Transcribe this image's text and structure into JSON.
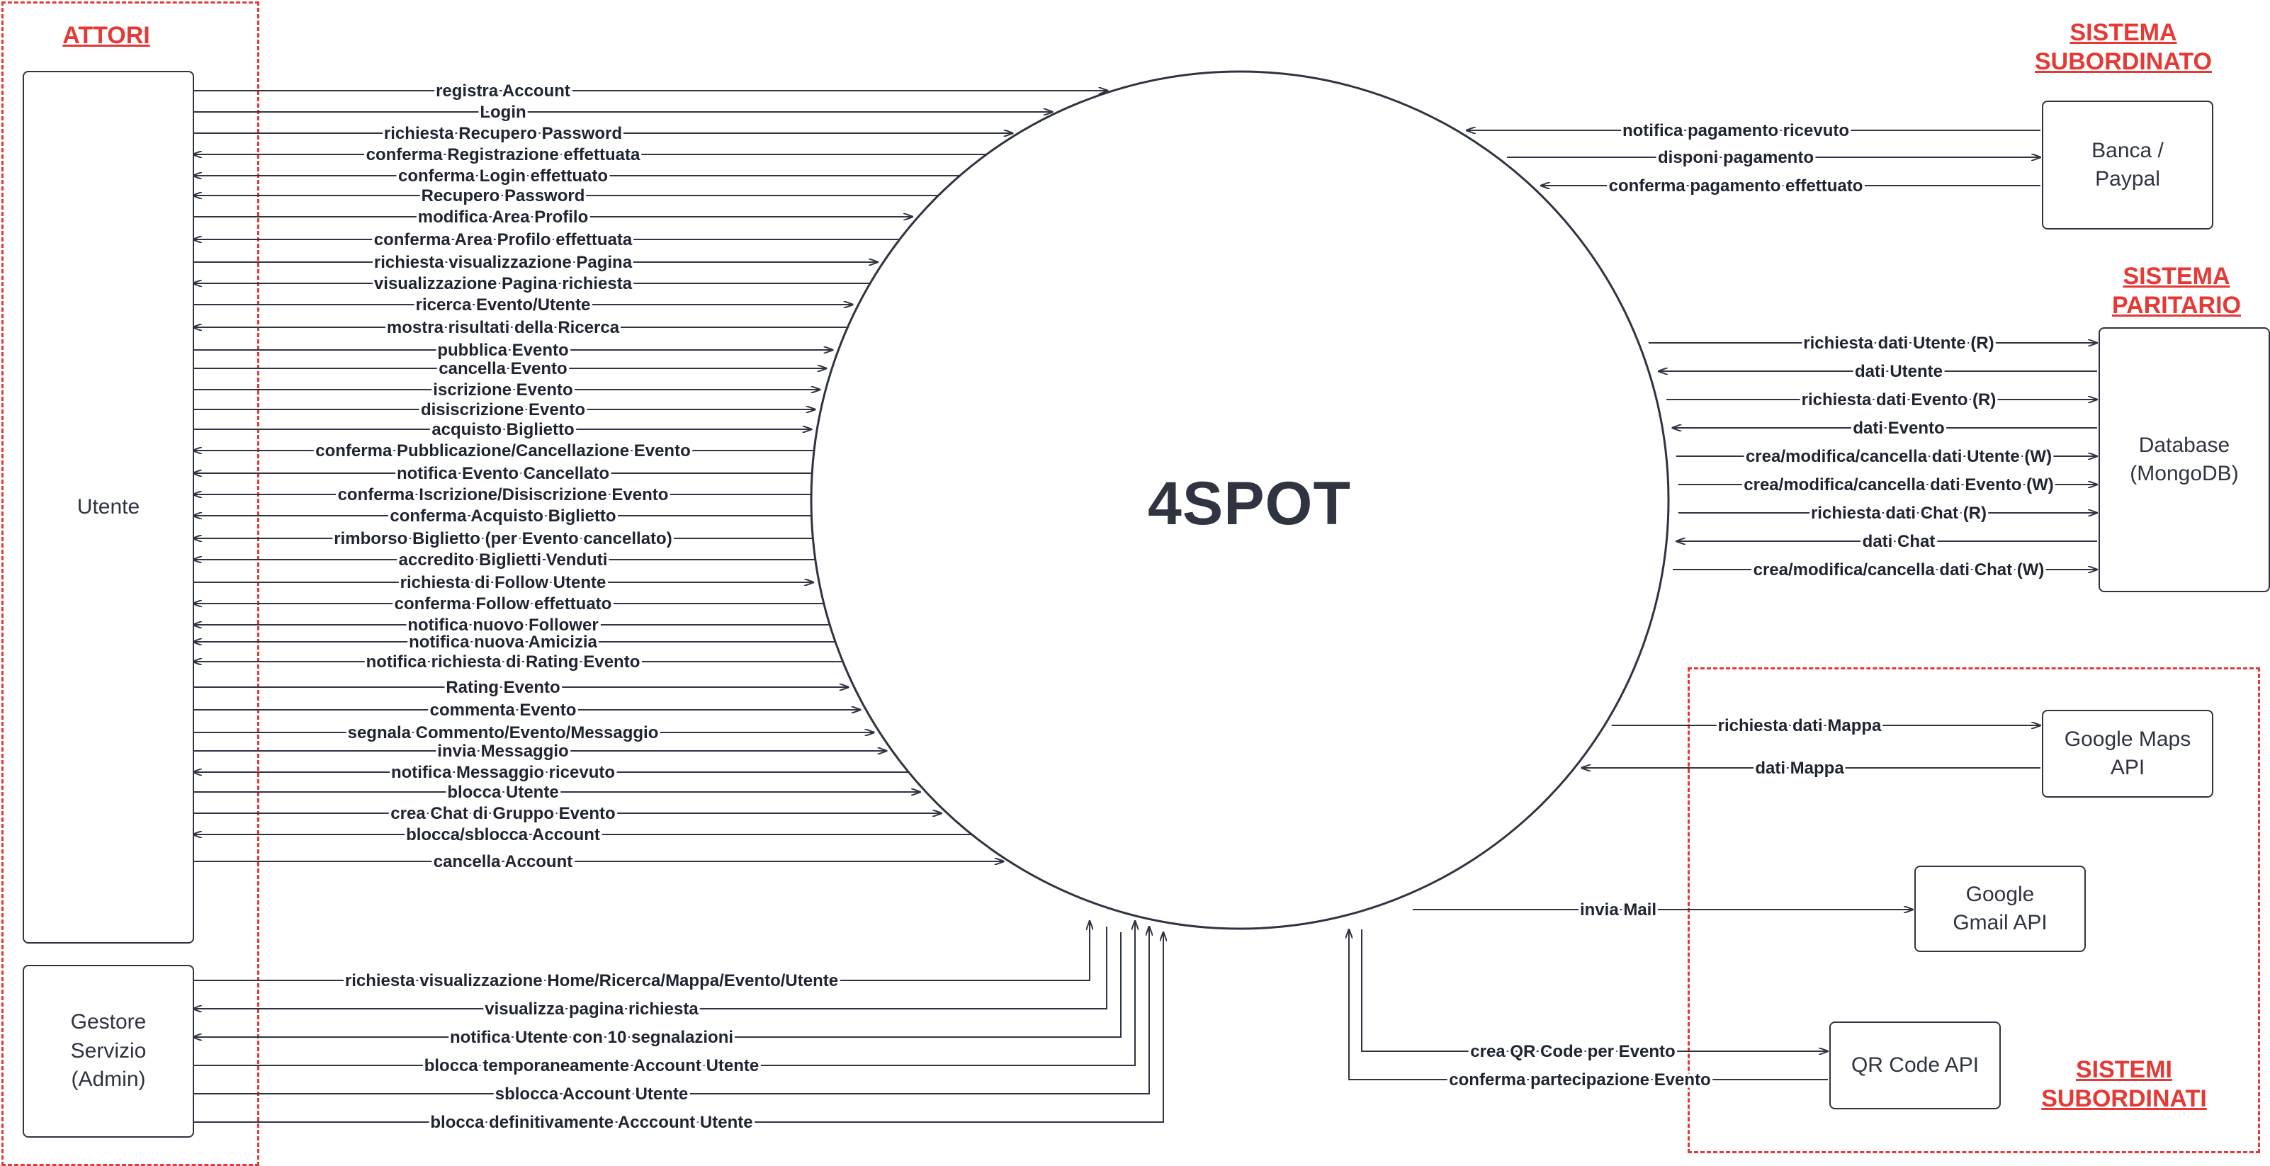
{
  "sections": {
    "attori": "ATTORI",
    "sistema_subordinato": "SISTEMA\nSUBORDINATO",
    "sistema_paritario": "SISTEMA\nPARITARIO",
    "sistemi_subordinati": "SISTEMI\nSUBORDINATI"
  },
  "center": "4SPOT",
  "entities": {
    "utente": "Utente",
    "admin": "Gestore\nServizio\n(Admin)",
    "banca": "Banca /\nPaypal",
    "database": "Database\n(MongoDB)",
    "maps": "Google Maps\nAPI",
    "gmail": "Google\nGmail API",
    "qr": "QR Code API"
  },
  "utente_flows": [
    {
      "label": "registra Account",
      "dir": "out"
    },
    {
      "label": "Login",
      "dir": "out"
    },
    {
      "label": "richiesta Recupero Password",
      "dir": "out"
    },
    {
      "label": "conferma Registrazione effettuata",
      "dir": "in"
    },
    {
      "label": "conferma Login effettuato",
      "dir": "in"
    },
    {
      "label": "Recupero Password",
      "dir": "in"
    },
    {
      "label": "modifica Area Profilo",
      "dir": "out"
    },
    {
      "label": "conferma Area Profilo effettuata",
      "dir": "in"
    },
    {
      "label": "richiesta visualizzazione Pagina",
      "dir": "out"
    },
    {
      "label": "visualizzazione Pagina richiesta",
      "dir": "in"
    },
    {
      "label": "ricerca Evento/Utente",
      "dir": "out"
    },
    {
      "label": "mostra risultati della Ricerca",
      "dir": "in"
    },
    {
      "label": "pubblica Evento",
      "dir": "out"
    },
    {
      "label": "cancella Evento",
      "dir": "out"
    },
    {
      "label": "iscrizione Evento",
      "dir": "out"
    },
    {
      "label": "disiscrizione Evento",
      "dir": "out"
    },
    {
      "label": "acquisto Biglietto",
      "dir": "out"
    },
    {
      "label": "conferma Pubblicazione/Cancellazione Evento",
      "dir": "in"
    },
    {
      "label": "notifica Evento Cancellato",
      "dir": "in"
    },
    {
      "label": "conferma Iscrizione/Disiscrizione Evento",
      "dir": "in"
    },
    {
      "label": "conferma Acquisto Biglietto",
      "dir": "in"
    },
    {
      "label": "rimborso Biglietto (per Evento cancellato)",
      "dir": "in"
    },
    {
      "label": "accredito Biglietti Venduti",
      "dir": "in"
    },
    {
      "label": "richiesta di Follow Utente",
      "dir": "out"
    },
    {
      "label": "conferma Follow effettuato",
      "dir": "in"
    },
    {
      "label": "notifica nuovo Follower",
      "dir": "in"
    },
    {
      "label": "notifica nuova Amicizia",
      "dir": "in"
    },
    {
      "label": "notifica richiesta di Rating Evento",
      "dir": "in"
    },
    {
      "label": "Rating Evento",
      "dir": "out"
    },
    {
      "label": "commenta Evento",
      "dir": "out"
    },
    {
      "label": "segnala Commento/Evento/Messaggio",
      "dir": "out"
    },
    {
      "label": "invia Messaggio",
      "dir": "out"
    },
    {
      "label": "notifica Messaggio ricevuto",
      "dir": "in"
    },
    {
      "label": "blocca Utente",
      "dir": "out"
    },
    {
      "label": "crea Chat di Gruppo Evento",
      "dir": "out"
    },
    {
      "label": "blocca/sblocca Account",
      "dir": "in"
    },
    {
      "label": "cancella Account",
      "dir": "out"
    }
  ],
  "admin_flows": [
    {
      "label": "richiesta visualizzazione Home/Ricerca/Mappa/Evento/Utente",
      "dir": "out"
    },
    {
      "label": "visualizza pagina richiesta",
      "dir": "in"
    },
    {
      "label": "notifica Utente con 10 segnalazioni",
      "dir": "in"
    },
    {
      "label": "blocca temporaneamente Account Utente",
      "dir": "out"
    },
    {
      "label": "sblocca Account Utente",
      "dir": "out"
    },
    {
      "label": "blocca definitivamente Acccount Utente",
      "dir": "out"
    }
  ],
  "banca_flows": [
    {
      "label": "notifica pagamento ricevuto",
      "dir": "in"
    },
    {
      "label": "disponi pagamento",
      "dir": "out"
    },
    {
      "label": "conferma pagamento effettuato",
      "dir": "in"
    }
  ],
  "db_flows": [
    {
      "label": "richiesta dati Utente (R)",
      "dir": "out"
    },
    {
      "label": "dati Utente",
      "dir": "in"
    },
    {
      "label": "richiesta dati Evento (R)",
      "dir": "out"
    },
    {
      "label": "dati Evento",
      "dir": "in"
    },
    {
      "label": "crea/modifica/cancella dati Utente (W)",
      "dir": "out"
    },
    {
      "label": "crea/modifica/cancella dati Evento (W)",
      "dir": "out"
    },
    {
      "label": "richiesta dati Chat (R)",
      "dir": "out"
    },
    {
      "label": "dati Chat",
      "dir": "in"
    },
    {
      "label": "crea/modifica/cancella dati Chat (W)",
      "dir": "out"
    }
  ],
  "maps_flows": [
    {
      "label": "richiesta dati Mappa",
      "dir": "out"
    },
    {
      "label": "dati Mappa",
      "dir": "in"
    }
  ],
  "gmail_flows": [
    {
      "label": "invia Mail",
      "dir": "out"
    }
  ],
  "qr_flows": [
    {
      "label": "crea QR Code per Evento",
      "dir": "out"
    },
    {
      "label": "conferma partecipazione Evento",
      "dir": "in"
    }
  ]
}
